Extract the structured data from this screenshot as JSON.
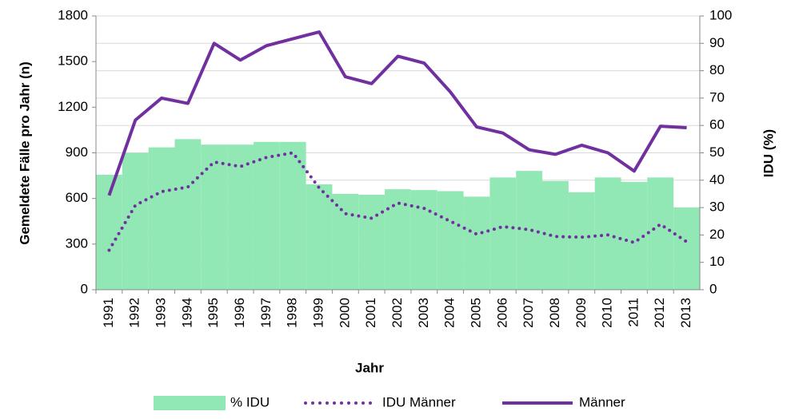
{
  "chart_data": {
    "type": "bar-line",
    "xlabel": "Jahr",
    "ylabel": "Gemeldete Fälle pro Jahr (n)",
    "y2label": "IDU (%)",
    "categories": [
      "1991",
      "1992",
      "1993",
      "1994",
      "1995",
      "1996",
      "1997",
      "1998",
      "1999",
      "2000",
      "2001",
      "2002",
      "2003",
      "2004",
      "2005",
      "2006",
      "2007",
      "2008",
      "2009",
      "2010",
      "2011",
      "2012",
      "2013"
    ],
    "series": [
      {
        "name": "% IDU",
        "type": "bar",
        "axis": "y2",
        "color": "#92e8b4",
        "values": [
          42,
          50,
          52,
          55,
          53,
          53,
          54,
          54,
          38.5,
          35,
          34.7,
          36.7,
          36.4,
          36,
          34,
          41,
          43.4,
          39.7,
          35.6,
          41,
          39.4,
          41,
          30
        ]
      },
      {
        "name": "IDU Männer",
        "type": "line",
        "dash": "dotted",
        "color": "#7030a0",
        "values": [
          260,
          555,
          645,
          675,
          840,
          810,
          870,
          900,
          670,
          500,
          470,
          570,
          535,
          450,
          365,
          415,
          395,
          350,
          345,
          360,
          310,
          430,
          315
        ]
      },
      {
        "name": "Männer",
        "type": "line",
        "color": "#7030a0",
        "values": [
          620,
          1115,
          1260,
          1225,
          1620,
          1510,
          1605,
          1650,
          1695,
          1400,
          1355,
          1535,
          1490,
          1300,
          1070,
          1030,
          920,
          890,
          950,
          900,
          780,
          1075,
          1065
        ]
      }
    ],
    "ylim": [
      0,
      1800
    ],
    "yticks": [
      0,
      300,
      600,
      900,
      1200,
      1500,
      1800
    ],
    "y2lim": [
      0,
      100
    ],
    "y2ticks": [
      0,
      10,
      20,
      30,
      40,
      50,
      60,
      70,
      80,
      90,
      100
    ],
    "grid": true,
    "legend": "bottom"
  }
}
